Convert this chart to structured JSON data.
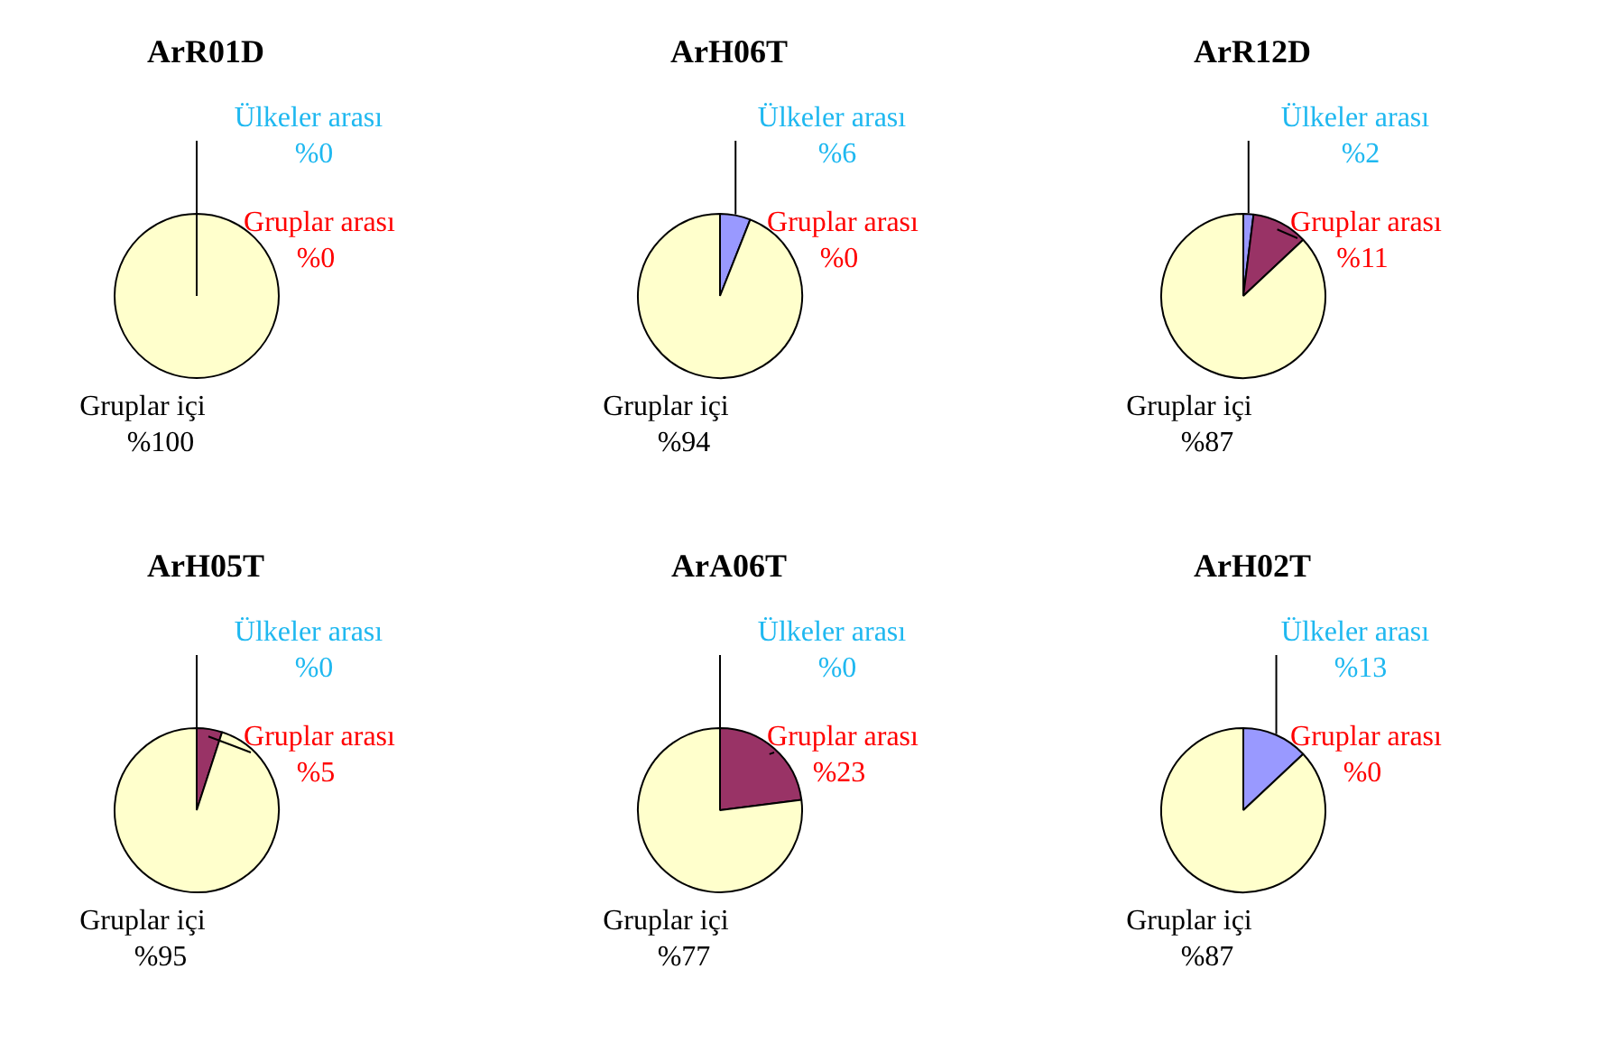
{
  "chart_data": [
    {
      "type": "pie",
      "title": "ArR01D",
      "categories": [
        "Ülkeler arası",
        "Gruplar arası",
        "Gruplar içi"
      ],
      "values": [
        0,
        0,
        100
      ],
      "value_labels": [
        "%0",
        "%0",
        "%100"
      ],
      "colors": [
        "#9999ff",
        "#993366",
        "#ffffcc"
      ]
    },
    {
      "type": "pie",
      "title": "ArH06T",
      "categories": [
        "Ülkeler arası",
        "Gruplar arası",
        "Gruplar içi"
      ],
      "values": [
        6,
        0,
        94
      ],
      "value_labels": [
        "%6",
        "%0",
        "%94"
      ],
      "colors": [
        "#9999ff",
        "#993366",
        "#ffffcc"
      ]
    },
    {
      "type": "pie",
      "title": "ArR12D",
      "categories": [
        "Ülkeler arası",
        "Gruplar arası",
        "Gruplar içi"
      ],
      "values": [
        2,
        11,
        87
      ],
      "value_labels": [
        "%2",
        "%11",
        "%87"
      ],
      "colors": [
        "#9999ff",
        "#993366",
        "#ffffcc"
      ]
    },
    {
      "type": "pie",
      "title": "ArH05T",
      "categories": [
        "Ülkeler arası",
        "Gruplar arası",
        "Gruplar içi"
      ],
      "values": [
        0,
        5,
        95
      ],
      "value_labels": [
        "%0",
        "%5",
        "%95"
      ],
      "colors": [
        "#9999ff",
        "#993366",
        "#ffffcc"
      ]
    },
    {
      "type": "pie",
      "title": "ArA06T",
      "categories": [
        "Ülkeler arası",
        "Gruplar arası",
        "Gruplar içi"
      ],
      "values": [
        0,
        23,
        77
      ],
      "value_labels": [
        "%0",
        "%23",
        "%77"
      ],
      "colors": [
        "#9999ff",
        "#993366",
        "#ffffcc"
      ]
    },
    {
      "type": "pie",
      "title": "ArH02T",
      "categories": [
        "Ülkeler arası",
        "Gruplar arası",
        "Gruplar içi"
      ],
      "values": [
        13,
        0,
        87
      ],
      "value_labels": [
        "%13",
        "%0",
        "%87"
      ],
      "colors": [
        "#9999ff",
        "#993366",
        "#ffffcc"
      ]
    }
  ]
}
